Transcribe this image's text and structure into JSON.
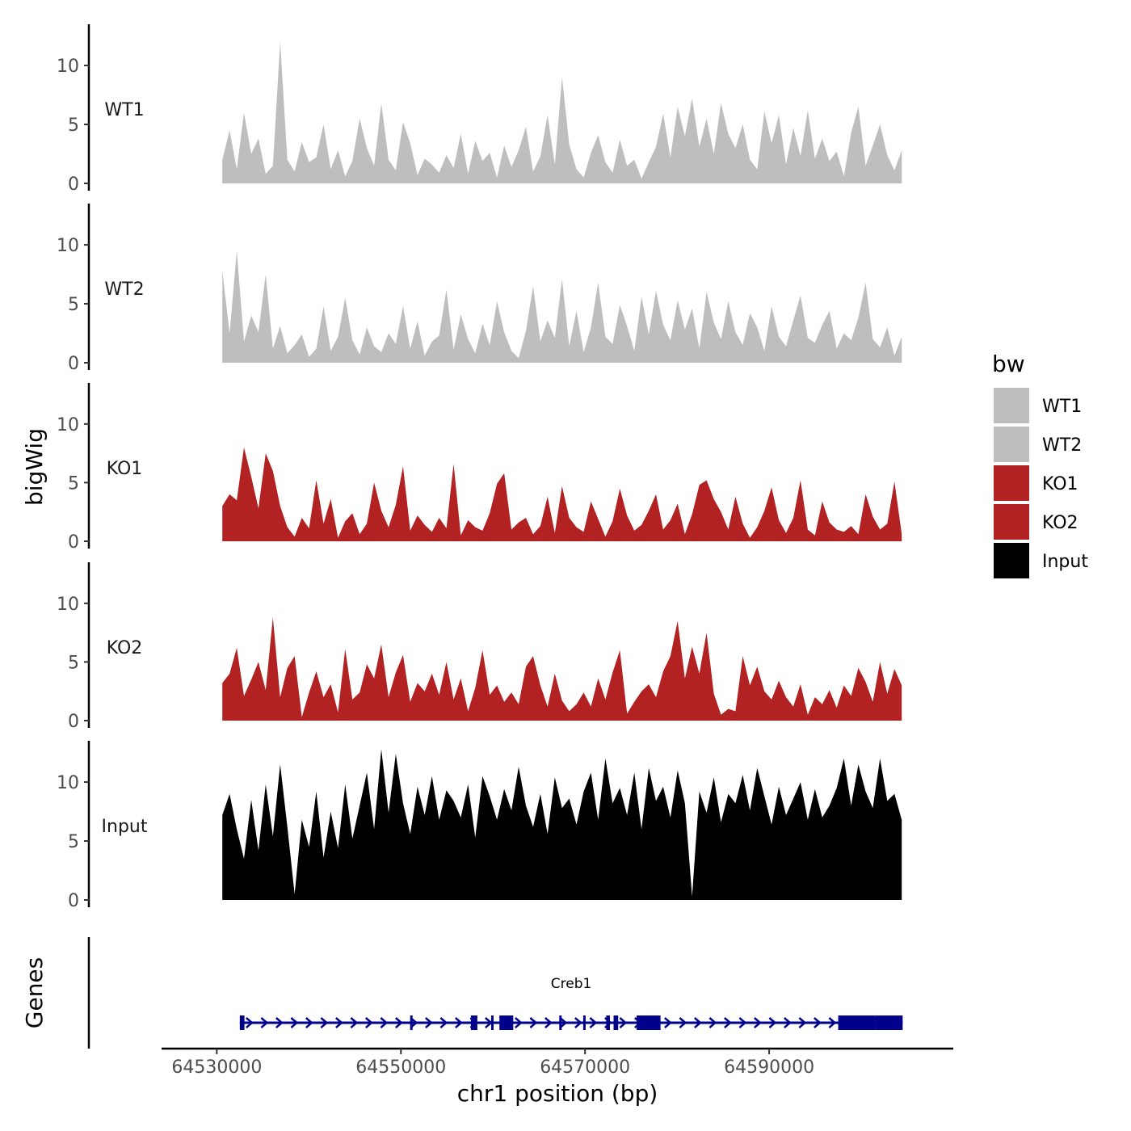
{
  "chart_data": {
    "type": "area",
    "title": "",
    "ylabel": "bigWig",
    "xlabel": "chr1 position (bp)",
    "x_range": [
      64530000,
      64605000
    ],
    "data_x_range": [
      64530600,
      64604400
    ],
    "xlim": [
      64524000,
      64610000
    ],
    "x_ticks": [
      64530000,
      64550000,
      64570000,
      64590000
    ],
    "x_tick_labels": [
      "64530000",
      "64550000",
      "64570000",
      "64590000"
    ],
    "ylim": [
      0,
      13.5
    ],
    "y_ticks": [
      0,
      5,
      10
    ],
    "y_tick_labels": [
      "0",
      "5",
      "10"
    ],
    "grid": false,
    "legend": {
      "title": "bw",
      "position": "right",
      "entries": [
        {
          "label": "WT1",
          "color": "#BEBEBE"
        },
        {
          "label": "WT2",
          "color": "#BEBEBE"
        },
        {
          "label": "KO1",
          "color": "#B22222"
        },
        {
          "label": "KO2",
          "color": "#B22222"
        },
        {
          "label": "Input",
          "color": "#000000"
        }
      ]
    },
    "series": [
      {
        "name": "WT1",
        "color": "#BEBEBE",
        "values": [
          2.0,
          4.5,
          1.2,
          6.0,
          2.5,
          3.8,
          0.8,
          1.5,
          12.0,
          2.0,
          1.0,
          3.5,
          1.8,
          2.2,
          5.0,
          1.2,
          2.8,
          0.6,
          1.9,
          5.5,
          3.0,
          1.5,
          6.8,
          2.0,
          1.1,
          5.2,
          3.4,
          0.7,
          2.1,
          1.6,
          0.9,
          2.4,
          1.3,
          4.2,
          0.8,
          3.6,
          1.9,
          2.6,
          0.5,
          3.2,
          1.4,
          2.8,
          4.8,
          1.0,
          2.3,
          5.8,
          1.6,
          9.0,
          3.3,
          1.2,
          0.5,
          2.6,
          4.1,
          1.8,
          0.9,
          3.7,
          1.5,
          2.0,
          0.4,
          1.8,
          3.1,
          5.9,
          2.2,
          6.5,
          4.0,
          7.2,
          3.1,
          5.5,
          2.5,
          6.8,
          4.2,
          3.0,
          5.0,
          2.0,
          1.2,
          6.1,
          3.4,
          5.8,
          1.6,
          4.7,
          2.3,
          6.2,
          2.1,
          3.8,
          1.9,
          2.7,
          0.6,
          4.3,
          6.5,
          1.5,
          3.2,
          5.0,
          2.4,
          1.1,
          2.8
        ]
      },
      {
        "name": "WT2",
        "color": "#BEBEBE",
        "values": [
          7.8,
          2.5,
          9.5,
          1.8,
          4.0,
          2.6,
          7.5,
          1.2,
          3.1,
          0.8,
          1.5,
          2.4,
          0.5,
          1.2,
          4.8,
          1.0,
          2.2,
          5.5,
          1.9,
          0.7,
          3.0,
          1.4,
          0.9,
          2.5,
          1.6,
          4.8,
          1.2,
          3.5,
          0.6,
          1.8,
          2.3,
          6.2,
          1.1,
          4.1,
          2.0,
          0.8,
          3.3,
          1.5,
          5.2,
          2.6,
          1.0,
          0.4,
          2.7,
          6.5,
          1.8,
          3.6,
          2.1,
          7.1,
          1.4,
          4.4,
          0.9,
          3.0,
          6.8,
          2.2,
          1.6,
          4.9,
          3.1,
          1.0,
          5.6,
          2.4,
          6.1,
          3.2,
          1.9,
          5.3,
          2.8,
          4.6,
          1.2,
          6.0,
          3.4,
          2.0,
          5.2,
          2.6,
          1.5,
          4.2,
          3.0,
          1.0,
          4.8,
          2.2,
          1.4,
          3.6,
          5.7,
          2.1,
          1.7,
          3.2,
          4.4,
          1.2,
          2.5,
          1.9,
          3.8,
          6.8,
          2.0,
          1.3,
          3.0,
          0.6,
          2.2
        ]
      },
      {
        "name": "KO1",
        "color": "#B22222",
        "values": [
          3.0,
          4.0,
          3.5,
          8.0,
          5.5,
          2.8,
          7.5,
          6.0,
          3.0,
          1.2,
          0.4,
          2.0,
          1.1,
          5.2,
          1.5,
          3.6,
          0.3,
          1.7,
          2.4,
          0.6,
          1.5,
          5.0,
          2.6,
          1.2,
          3.1,
          6.4,
          0.9,
          2.2,
          1.4,
          0.8,
          2.0,
          1.1,
          6.6,
          0.5,
          1.8,
          1.2,
          0.9,
          2.4,
          4.9,
          5.8,
          1.0,
          1.6,
          2.0,
          0.6,
          1.3,
          3.8,
          0.7,
          4.7,
          2.0,
          1.2,
          0.8,
          3.4,
          1.9,
          0.4,
          1.7,
          4.5,
          2.2,
          0.9,
          1.4,
          2.6,
          4.0,
          1.0,
          1.8,
          3.2,
          0.6,
          2.3,
          4.8,
          5.2,
          3.6,
          2.5,
          1.0,
          3.8,
          1.5,
          0.3,
          1.2,
          2.6,
          4.6,
          1.8,
          0.7,
          2.0,
          5.2,
          1.0,
          0.5,
          3.4,
          1.6,
          1.0,
          0.8,
          1.3,
          0.6,
          4.0,
          2.1,
          1.0,
          1.5,
          5.1,
          0.6
        ]
      },
      {
        "name": "KO2",
        "color": "#B22222",
        "values": [
          3.2,
          4.0,
          6.2,
          2.1,
          3.5,
          5.0,
          2.6,
          8.8,
          2.0,
          4.5,
          5.5,
          0.3,
          2.4,
          4.2,
          2.0,
          3.1,
          0.7,
          6.1,
          1.8,
          2.4,
          4.8,
          3.6,
          6.5,
          2.0,
          4.1,
          5.6,
          1.6,
          3.2,
          2.5,
          4.0,
          2.2,
          5.0,
          1.8,
          3.6,
          0.8,
          2.8,
          6.0,
          2.2,
          3.0,
          1.6,
          2.4,
          1.4,
          4.6,
          5.5,
          3.0,
          1.2,
          4.0,
          1.7,
          0.8,
          1.4,
          2.4,
          1.2,
          3.6,
          1.8,
          4.1,
          6.0,
          0.6,
          1.6,
          2.5,
          3.1,
          2.0,
          4.2,
          5.5,
          8.5,
          3.6,
          6.3,
          4.0,
          7.5,
          2.3,
          0.5,
          1.0,
          0.8,
          5.5,
          3.0,
          4.6,
          2.5,
          1.8,
          3.4,
          2.0,
          1.2,
          3.1,
          0.5,
          2.0,
          1.4,
          2.6,
          1.1,
          3.0,
          2.1,
          4.5,
          3.3,
          1.6,
          5.0,
          2.3,
          4.4,
          3.0
        ]
      },
      {
        "name": "Input",
        "color": "#000000",
        "values": [
          7.2,
          9.0,
          6.0,
          3.5,
          8.5,
          4.2,
          9.8,
          5.4,
          11.5,
          6.2,
          0.5,
          6.8,
          4.5,
          9.2,
          3.6,
          7.5,
          4.4,
          9.8,
          5.2,
          8.0,
          10.8,
          6.0,
          12.8,
          7.4,
          12.4,
          8.2,
          5.6,
          9.6,
          7.2,
          10.5,
          6.8,
          9.3,
          8.4,
          7.0,
          9.8,
          5.3,
          10.5,
          8.8,
          6.8,
          9.4,
          7.6,
          11.3,
          8.0,
          6.2,
          9.0,
          5.6,
          10.4,
          7.8,
          8.6,
          6.4,
          9.2,
          10.8,
          6.8,
          12.0,
          8.2,
          9.5,
          7.2,
          10.8,
          6.0,
          11.2,
          8.4,
          9.6,
          7.0,
          11.0,
          8.2,
          0.3,
          9.2,
          7.4,
          10.4,
          6.6,
          9.0,
          8.2,
          10.6,
          7.6,
          11.2,
          8.8,
          6.4,
          9.6,
          7.2,
          8.6,
          10.0,
          6.8,
          9.4,
          7.0,
          8.0,
          9.5,
          12.0,
          8.0,
          11.5,
          9.2,
          7.8,
          12.0,
          8.4,
          9.0,
          6.8
        ]
      }
    ],
    "gene_track": {
      "label": "Genes",
      "gene_name": "Creb1",
      "color": "#00008B",
      "strand": "+",
      "transcript_start": 64532500,
      "transcript_end": 64604500,
      "exons": [
        [
          64532500,
          64533000
        ],
        [
          64551000,
          64551100
        ],
        [
          64557600,
          64558300
        ],
        [
          64559800,
          64560000
        ],
        [
          64560700,
          64562200
        ],
        [
          64567200,
          64567300
        ],
        [
          64569800,
          64569900
        ],
        [
          64572300,
          64572700
        ],
        [
          64573100,
          64573600
        ],
        [
          64575600,
          64578200
        ],
        [
          64597500,
          64601500
        ],
        [
          64601500,
          64604500
        ]
      ]
    }
  }
}
